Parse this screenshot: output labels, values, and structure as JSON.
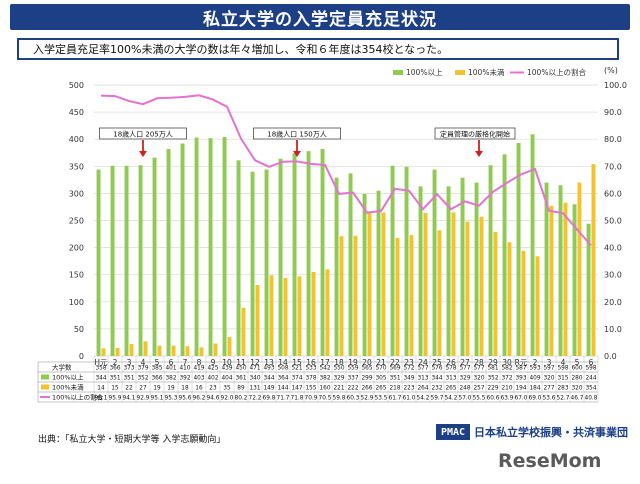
{
  "title": "私立大学の入学定員充足状況",
  "subtitle": "入学定員充足率100%未満の大学の数は年々増加し、令和６年度は354校となった。",
  "source": "出典：「私立大学・短期大学等 入学志願動向」",
  "org_logo": "PMAC",
  "org_name": "日本私立学校振興・共済事業団",
  "watermark": "ReseMom",
  "colors": {
    "title_bg": "#1c3f86",
    "over": "#8fcb4f",
    "under": "#f1c232",
    "ratio": "#e472d0"
  },
  "chart_data": {
    "type": "bar",
    "categories": [
      "H元",
      "2",
      "3",
      "4",
      "5",
      "6",
      "7",
      "8",
      "9",
      "10",
      "11",
      "12",
      "13",
      "14",
      "15",
      "16",
      "17",
      "18",
      "19",
      "20",
      "21",
      "22",
      "23",
      "24",
      "25",
      "26",
      "27",
      "28",
      "29",
      "30",
      "R元",
      "2",
      "3",
      "4",
      "5",
      "6"
    ],
    "series": [
      {
        "name": "100%以上",
        "type": "bar",
        "values": [
          344,
          351,
          351,
          352,
          366,
          382,
          392,
          403,
          402,
          404,
          361,
          340,
          344,
          364,
          374,
          378,
          382,
          329,
          337,
          299,
          305,
          351,
          349,
          313,
          344,
          313,
          329,
          320,
          352,
          372,
          393,
          409,
          320,
          315,
          280,
          244
        ]
      },
      {
        "name": "100%未満",
        "type": "bar",
        "values": [
          14,
          15,
          22,
          27,
          19,
          19,
          18,
          16,
          23,
          35,
          89,
          131,
          149,
          144,
          147,
          155,
          160,
          221,
          222,
          266,
          265,
          218,
          223,
          264,
          232,
          265,
          248,
          257,
          229,
          210,
          194,
          184,
          277,
          283,
          320,
          354
        ]
      },
      {
        "name": "100%以上の割合",
        "type": "line",
        "axis": "right",
        "values": [
          96.1,
          95.9,
          94.1,
          92.9,
          95.1,
          95.3,
          95.6,
          96.2,
          94.6,
          92.0,
          80.2,
          72.2,
          69.8,
          71.7,
          71.8,
          70.9,
          70.5,
          59.8,
          60.3,
          52.9,
          53.5,
          61.7,
          61.0,
          54.2,
          59.7,
          54.2,
          57.0,
          55.5,
          60.6,
          63.9,
          67.0,
          69.0,
          53.6,
          52.7,
          46.7,
          40.8
        ]
      }
    ],
    "table": {
      "rows": [
        {
          "label": "大学数",
          "values": [
            "358",
            "366",
            "373",
            "379",
            "385",
            "401",
            "410",
            "419",
            "425",
            "439",
            "450",
            "471",
            "493",
            "508",
            "521",
            "533",
            "542",
            "550",
            "559",
            "565",
            "570",
            "569",
            "572",
            "577",
            "576",
            "578",
            "577",
            "577",
            "581",
            "582",
            "587",
            "593",
            "597",
            "598",
            "600",
            "598"
          ]
        },
        {
          "label": "100%以上",
          "values": [
            "344",
            "351",
            "351",
            "352",
            "366",
            "382",
            "392",
            "403",
            "402",
            "404",
            "361",
            "340",
            "344",
            "364",
            "374",
            "378",
            "382",
            "329",
            "337",
            "299",
            "305",
            "351",
            "349",
            "313",
            "344",
            "313",
            "329",
            "320",
            "352",
            "372",
            "393",
            "409",
            "320",
            "315",
            "280",
            "244"
          ]
        },
        {
          "label": "100%未満",
          "values": [
            "14",
            "15",
            "22",
            "27",
            "19",
            "19",
            "18",
            "16",
            "23",
            "35",
            "89",
            "131",
            "149",
            "144",
            "147",
            "155",
            "160",
            "221",
            "222",
            "266",
            "265",
            "218",
            "223",
            "264",
            "232",
            "265",
            "248",
            "257",
            "229",
            "210",
            "194",
            "184",
            "277",
            "283",
            "320",
            "354"
          ]
        },
        {
          "label": "100%以上の割合",
          "values": [
            "96.1",
            "95.9",
            "94.1",
            "92.9",
            "95.1",
            "95.3",
            "95.6",
            "96.2",
            "94.6",
            "92.0",
            "80.2",
            "72.2",
            "69.8",
            "71.7",
            "71.8",
            "70.9",
            "70.5",
            "59.8",
            "60.3",
            "52.9",
            "53.5",
            "61.7",
            "61.0",
            "54.2",
            "59.7",
            "54.2",
            "57.0",
            "55.5",
            "60.6",
            "63.9",
            "67.0",
            "69.0",
            "53.6",
            "52.7",
            "46.7",
            "40.8"
          ]
        }
      ]
    },
    "ylim": [
      0,
      500
    ],
    "y_ticks": [
      0,
      50,
      100,
      150,
      200,
      250,
      300,
      350,
      400,
      450,
      500
    ],
    "y2lim": [
      0,
      100
    ],
    "y2_ticks": [
      "0.0",
      "10.0",
      "20.0",
      "30.0",
      "40.0",
      "50.0",
      "60.0",
      "70.0",
      "80.0",
      "90.0",
      "100.0"
    ],
    "y2_unit": "(%)",
    "annotations": [
      {
        "text": "18歳人口 205万人",
        "category_index": 3
      },
      {
        "text": "18歳人口 150万人",
        "category_index": 14
      },
      {
        "text": "定員管理の厳格化開始",
        "category_index": 27
      }
    ],
    "legend_position": "top-right",
    "grid": true
  }
}
